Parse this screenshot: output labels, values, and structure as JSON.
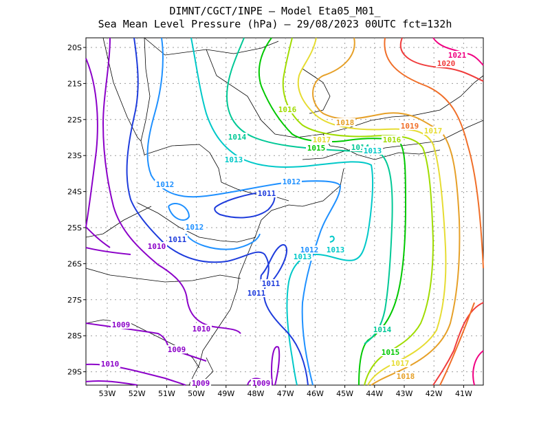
{
  "title_line1": "DIMNT/CGCT/INPE –  Model Eta05_M01_",
  "title_line2": "Sea Mean Level Pressure (hPa) – 29/08/2023 00UTC fct=132h",
  "lat_labels": [
    "20S",
    "21S",
    "22S",
    "23S",
    "24S",
    "25S",
    "26S",
    "27S",
    "28S",
    "29S"
  ],
  "lon_labels": [
    "53W",
    "52W",
    "51W",
    "50W",
    "49W",
    "48W",
    "47W",
    "46W",
    "45W",
    "44W",
    "43W",
    "42W",
    "41W"
  ],
  "isobar_colors": {
    "1009": "#8b00c8",
    "1010": "#8b00c8",
    "1011": "#1e3cdc",
    "1012": "#1e90ff",
    "1013": "#00c8c8",
    "1014": "#00c896",
    "1015": "#00c800",
    "1016": "#a0dc00",
    "1017": "#e6dc32",
    "1018": "#e6a028",
    "1019": "#f06e28",
    "1020": "#f03c3c",
    "1021": "#f00082"
  },
  "contour_labels": [
    {
      "text": "1021",
      "cls": "1021"
    },
    {
      "text": "1020",
      "cls": "1020"
    },
    {
      "text": "1019",
      "cls": "1019"
    },
    {
      "text": "1018",
      "cls": "1018"
    },
    {
      "text": "1017",
      "cls": "1017"
    },
    {
      "text": "1016",
      "cls": "1016"
    },
    {
      "text": "1016",
      "cls": "1016"
    },
    {
      "text": "1017",
      "cls": "1017"
    },
    {
      "text": "1015",
      "cls": "1015"
    },
    {
      "text": "1014",
      "cls": "1014"
    },
    {
      "text": "1014",
      "cls": "1014"
    },
    {
      "text": "1013",
      "cls": "1013"
    },
    {
      "text": "1013",
      "cls": "1013"
    },
    {
      "text": "1012",
      "cls": "1012"
    },
    {
      "text": "1012",
      "cls": "1012"
    },
    {
      "text": "1012",
      "cls": "1012"
    },
    {
      "text": "1011",
      "cls": "1011"
    },
    {
      "text": "1011",
      "cls": "1011"
    },
    {
      "text": "1011",
      "cls": "1011"
    },
    {
      "text": "1011",
      "cls": "1011"
    },
    {
      "text": "1010",
      "cls": "1010"
    },
    {
      "text": "1010",
      "cls": "1010"
    },
    {
      "text": "1010",
      "cls": "1010"
    },
    {
      "text": "1009",
      "cls": "1009"
    },
    {
      "text": "1009",
      "cls": "1009"
    },
    {
      "text": "1009",
      "cls": "1009"
    },
    {
      "text": "1012",
      "cls": "1012"
    },
    {
      "text": "1013",
      "cls": "1013"
    },
    {
      "text": "1013",
      "cls": "1013"
    },
    {
      "text": "1014",
      "cls": "1014"
    },
    {
      "text": "1015",
      "cls": "1015"
    },
    {
      "text": "1017",
      "cls": "1017"
    },
    {
      "text": "1018",
      "cls": "1018"
    },
    {
      "text": "1009",
      "cls": "1009"
    }
  ]
}
